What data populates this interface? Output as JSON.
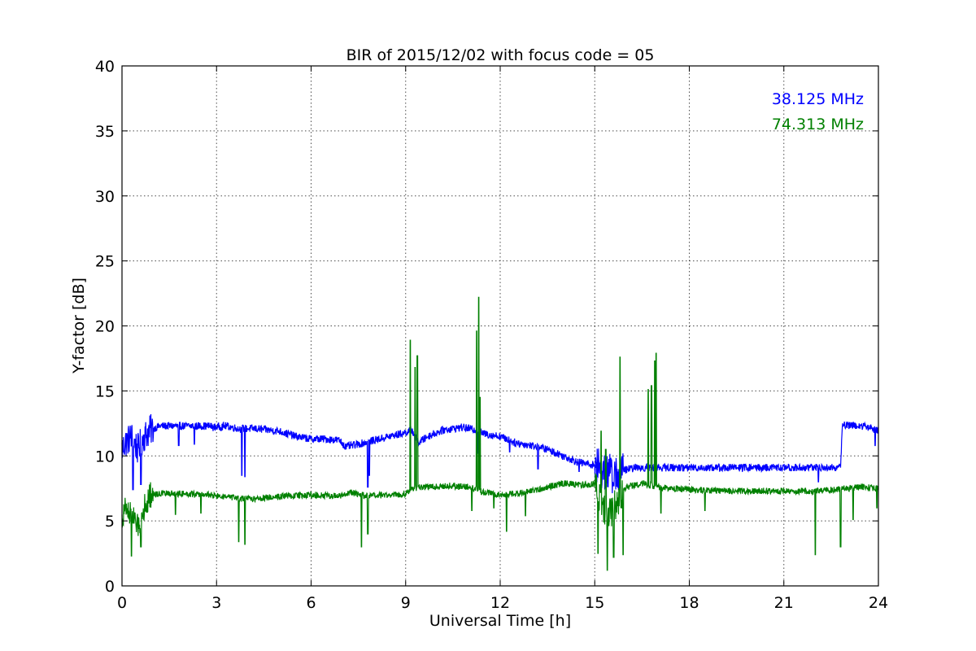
{
  "chart_data": {
    "type": "line",
    "title": "BIR of 2015/12/02 with focus code = 05",
    "xlabel": "Universal Time [h]",
    "ylabel": "Y-factor [dB]",
    "xlim": [
      0,
      24
    ],
    "ylim": [
      0,
      40
    ],
    "xticks": [
      0,
      3,
      6,
      9,
      12,
      15,
      18,
      21,
      24
    ],
    "yticks": [
      0,
      5,
      10,
      15,
      20,
      25,
      30,
      35,
      40
    ],
    "grid": true,
    "legend_position": "top-right",
    "series": [
      {
        "name": "38.125 MHz",
        "color": "#0000ff",
        "noise": 0.3,
        "x": [
          0,
          0.1,
          0.3,
          0.5,
          0.7,
          0.9,
          1.2,
          2.0,
          2.8,
          2.9,
          3.3,
          3.7,
          4.2,
          5.0,
          5.5,
          6.0,
          6.5,
          6.9,
          7.1,
          7.5,
          8.0,
          8.5,
          9.0,
          9.2,
          9.4,
          9.7,
          10.2,
          10.8,
          11.2,
          11.5,
          12.0,
          12.5,
          13.0,
          13.5,
          14.0,
          14.5,
          15.0,
          15.3,
          15.7,
          15.9,
          16.3,
          16.8,
          18.0,
          19.0,
          20.0,
          21.0,
          22.0,
          22.8,
          22.85,
          23.5,
          24.0
        ],
        "values": [
          10.5,
          11.0,
          11.5,
          10.5,
          11.5,
          12.0,
          12.3,
          12.3,
          12.3,
          12.2,
          12.3,
          12.1,
          12.1,
          11.9,
          11.5,
          11.3,
          11.3,
          11.2,
          10.7,
          10.9,
          11.2,
          11.5,
          11.8,
          12.0,
          11.0,
          11.5,
          12.0,
          12.2,
          12.0,
          11.7,
          11.5,
          11.0,
          10.8,
          10.5,
          10.0,
          9.5,
          9.3,
          8.8,
          8.5,
          8.9,
          9.1,
          9.1,
          9.1,
          9.1,
          9.1,
          9.1,
          9.1,
          9.1,
          12.4,
          12.3,
          12.0
        ],
        "dips": [
          [
            0.35,
            7.4
          ],
          [
            0.6,
            7.8
          ],
          [
            1.8,
            10.8
          ],
          [
            2.3,
            10.9
          ],
          [
            3.8,
            8.5
          ],
          [
            3.9,
            8.4
          ],
          [
            7.8,
            7.6
          ],
          [
            7.85,
            8.5
          ],
          [
            9.3,
            10.0
          ],
          [
            11.3,
            10.2
          ],
          [
            12.3,
            10.3
          ],
          [
            13.2,
            9.0
          ],
          [
            14.5,
            8.8
          ],
          [
            15.2,
            8.0
          ],
          [
            15.6,
            7.7
          ],
          [
            22.1,
            8.0
          ],
          [
            23.9,
            10.8
          ]
        ]
      },
      {
        "name": "74.313 MHz",
        "color": "#008000",
        "noise": 0.25,
        "x": [
          0,
          0.1,
          0.3,
          0.5,
          0.7,
          0.9,
          1.2,
          2.0,
          2.8,
          3.0,
          3.5,
          3.8,
          4.2,
          5.0,
          6.0,
          7.0,
          7.2,
          7.8,
          8.5,
          9.0,
          9.2,
          9.5,
          10.5,
          11.0,
          11.5,
          12.0,
          12.5,
          13.0,
          13.5,
          14.0,
          14.5,
          15.0,
          15.3,
          15.5,
          15.7,
          16.0,
          16.5,
          17.0,
          18.0,
          19.0,
          20.0,
          21.0,
          22.0,
          23.0,
          23.5,
          24.0
        ],
        "values": [
          5.0,
          6.0,
          5.5,
          4.5,
          6.0,
          7.0,
          7.1,
          7.1,
          7.0,
          6.9,
          6.8,
          6.7,
          6.7,
          6.9,
          7.0,
          6.9,
          7.2,
          6.9,
          7.0,
          7.1,
          7.5,
          7.6,
          7.7,
          7.6,
          7.2,
          7.0,
          7.1,
          7.3,
          7.6,
          7.9,
          7.8,
          7.8,
          6.0,
          5.5,
          6.5,
          7.6,
          7.9,
          7.6,
          7.4,
          7.3,
          7.3,
          7.3,
          7.3,
          7.5,
          7.6,
          7.5
        ],
        "dips": [
          [
            0.3,
            2.3
          ],
          [
            0.6,
            3.0
          ],
          [
            1.7,
            5.5
          ],
          [
            2.5,
            5.6
          ],
          [
            3.7,
            3.4
          ],
          [
            3.9,
            3.2
          ],
          [
            7.6,
            3.0
          ],
          [
            7.8,
            4.0
          ],
          [
            11.1,
            5.8
          ],
          [
            11.8,
            6.0
          ],
          [
            12.2,
            4.2
          ],
          [
            12.8,
            5.4
          ],
          [
            15.1,
            2.5
          ],
          [
            15.2,
            0.1
          ],
          [
            15.4,
            1.2
          ],
          [
            15.6,
            2.2
          ],
          [
            15.9,
            2.4
          ],
          [
            17.1,
            5.6
          ],
          [
            18.5,
            5.8
          ],
          [
            22.0,
            2.4
          ],
          [
            22.8,
            3.0
          ],
          [
            23.2,
            5.1
          ],
          [
            23.95,
            6.0
          ]
        ],
        "spikes": [
          [
            9.15,
            18.9
          ],
          [
            9.3,
            16.8
          ],
          [
            9.37,
            17.7
          ],
          [
            11.25,
            19.6
          ],
          [
            11.32,
            22.2
          ],
          [
            11.36,
            14.5
          ],
          [
            15.2,
            11.9
          ],
          [
            15.35,
            10.5
          ],
          [
            15.8,
            17.6
          ],
          [
            16.7,
            15.1
          ],
          [
            16.8,
            15.4
          ],
          [
            16.9,
            17.3
          ],
          [
            16.95,
            17.9
          ]
        ]
      }
    ]
  }
}
